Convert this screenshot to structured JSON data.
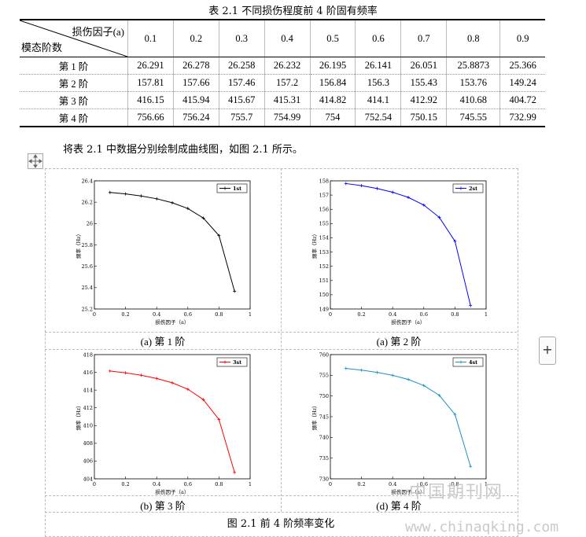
{
  "table": {
    "caption": "表 2.1 不同损伤程度前 4 阶固有频率",
    "corner_top": "损伤因子(a)",
    "corner_bottom": "模态阶数",
    "columns": [
      "0.1",
      "0.2",
      "0.3",
      "0.4",
      "0.5",
      "0.6",
      "0.7",
      "0.8",
      "0.9"
    ],
    "rows": [
      {
        "label": "第 1 阶",
        "values": [
          "26.291",
          "26.278",
          "26.258",
          "26.232",
          "26.195",
          "26.141",
          "26.051",
          "25.8873",
          "25.366"
        ]
      },
      {
        "label": "第 2 阶",
        "values": [
          "157.81",
          "157.66",
          "157.46",
          "157.2",
          "156.84",
          "156.3",
          "155.43",
          "153.76",
          "149.24"
        ]
      },
      {
        "label": "第 3 阶",
        "values": [
          "416.15",
          "415.94",
          "415.67",
          "415.31",
          "414.82",
          "414.1",
          "412.92",
          "410.68",
          "404.72"
        ]
      },
      {
        "label": "第 4 阶",
        "values": [
          "756.66",
          "756.24",
          "755.7",
          "754.99",
          "754",
          "752.54",
          "750.15",
          "745.55",
          "732.99"
        ]
      }
    ]
  },
  "paragraph": "将表 2.1 中数据分别绘制成曲线图，如图 2.1 所示。",
  "figure_caption": "图 2.1 前 4 阶频率变化",
  "subcaptions": [
    "(a)  第 1 阶",
    "(a)  第 2 阶",
    "(b)  第 3 阶",
    "(d)  第 4 阶"
  ],
  "watermark": {
    "text1": "中国期刊网",
    "text2": "www.chinaqking.com"
  },
  "chart_data": [
    {
      "type": "line",
      "series_name": "1st",
      "color": "#000000",
      "x": [
        0.1,
        0.2,
        0.3,
        0.4,
        0.5,
        0.6,
        0.7,
        0.8,
        0.9
      ],
      "y": [
        26.291,
        26.278,
        26.258,
        26.232,
        26.195,
        26.141,
        26.051,
        25.8873,
        25.366
      ],
      "xlim": [
        0,
        1
      ],
      "ylim": [
        25.2,
        26.4
      ],
      "xticks": [
        "0",
        "0.2",
        "0.4",
        "0.6",
        "0.8",
        "1"
      ],
      "yticks": [
        "25.2",
        "25.4",
        "25.6",
        "25.8",
        "26",
        "26.2",
        "26.4"
      ],
      "xlabel": "损伤因子（a）",
      "ylabel": "频率（Hz）",
      "legend": "top-right"
    },
    {
      "type": "line",
      "series_name": "2st",
      "color": "#0000ff",
      "x": [
        0.1,
        0.2,
        0.3,
        0.4,
        0.5,
        0.6,
        0.7,
        0.8,
        0.9
      ],
      "y": [
        157.81,
        157.66,
        157.46,
        157.2,
        156.84,
        156.3,
        155.43,
        153.76,
        149.24
      ],
      "xlim": [
        0,
        1
      ],
      "ylim": [
        149,
        158
      ],
      "xticks": [
        "0",
        "0.2",
        "0.4",
        "0.6",
        "0.8",
        "1"
      ],
      "yticks": [
        "149",
        "150",
        "151",
        "152",
        "153",
        "154",
        "155",
        "156",
        "157",
        "158"
      ],
      "xlabel": "损伤因子（a）",
      "ylabel": "频率（Hz）",
      "legend": "top-right"
    },
    {
      "type": "line",
      "series_name": "3st",
      "color": "#ff0000",
      "x": [
        0.1,
        0.2,
        0.3,
        0.4,
        0.5,
        0.6,
        0.7,
        0.8,
        0.9
      ],
      "y": [
        416.15,
        415.94,
        415.67,
        415.31,
        414.82,
        414.1,
        412.92,
        410.68,
        404.72
      ],
      "xlim": [
        0,
        1
      ],
      "ylim": [
        404,
        418
      ],
      "xticks": [
        "0",
        "0.2",
        "0.4",
        "0.6",
        "0.8",
        "1"
      ],
      "yticks": [
        "404",
        "406",
        "408",
        "410",
        "412",
        "414",
        "416",
        "418"
      ],
      "xlabel": "损伤因子（a）",
      "ylabel": "频率（Hz）",
      "legend": "top-right"
    },
    {
      "type": "line",
      "series_name": "4st",
      "color": "#1f8fbf",
      "x": [
        0.1,
        0.2,
        0.3,
        0.4,
        0.5,
        0.6,
        0.7,
        0.8,
        0.9
      ],
      "y": [
        756.66,
        756.24,
        755.7,
        754.99,
        754,
        752.54,
        750.15,
        745.55,
        732.99
      ],
      "xlim": [
        0,
        1
      ],
      "ylim": [
        730,
        760
      ],
      "xticks": [
        "0",
        "0.2",
        "0.4",
        "0.6",
        "0.8",
        "1"
      ],
      "yticks": [
        "730",
        "735",
        "740",
        "745",
        "750",
        "755",
        "760"
      ],
      "xlabel": "损伤因子（a）",
      "ylabel": "频率（Hz）",
      "legend": "top-right"
    }
  ]
}
